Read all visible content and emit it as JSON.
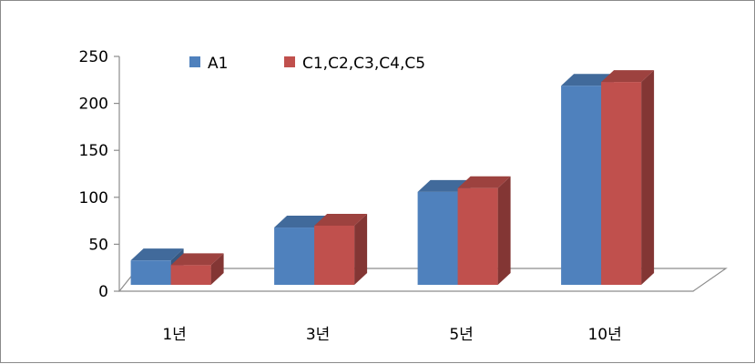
{
  "chart_data": {
    "type": "bar",
    "categories": [
      "1년",
      "3년",
      "5년",
      "10년"
    ],
    "series": [
      {
        "name": "A1",
        "values": [
          26,
          61,
          99,
          212
        ],
        "color": "#4f81bd"
      },
      {
        "name": "C1,C2,C3,C4,C5",
        "values": [
          21,
          63,
          103,
          216
        ],
        "color": "#c0504d"
      }
    ],
    "yticks": [
      "0",
      "50",
      "100",
      "150",
      "200",
      "250"
    ],
    "ylim": [
      0,
      250
    ],
    "title": "",
    "xlabel": "",
    "ylabel": "",
    "legend_position": "top-left",
    "grid": false
  }
}
